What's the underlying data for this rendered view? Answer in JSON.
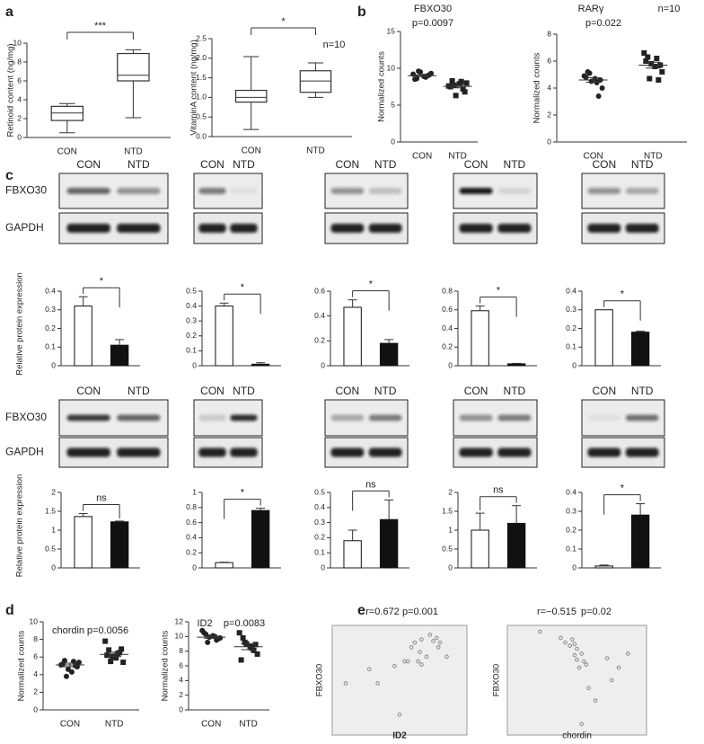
{
  "chart_data": [
    {
      "type": "box",
      "panel": "a",
      "ylabel": "Retinoid content  (ng/mg)",
      "categories": [
        "CON",
        "NTD"
      ],
      "min": [
        0.5,
        2.1
      ],
      "q1": [
        1.8,
        6.0
      ],
      "median": [
        2.6,
        6.6
      ],
      "q3": [
        3.3,
        8.9
      ],
      "max": [
        3.6,
        9.3
      ],
      "ylim": [
        0,
        10
      ],
      "yticks": [
        0,
        2,
        4,
        6,
        8,
        10
      ],
      "annotation": "***"
    },
    {
      "type": "box",
      "ylabel": "VitaminA content  (ng/mg)",
      "categories": [
        "CON",
        "NTD"
      ],
      "min": [
        0.18,
        1.0
      ],
      "q1": [
        0.88,
        1.13
      ],
      "median": [
        1.0,
        1.42
      ],
      "q3": [
        1.18,
        1.68
      ],
      "max": [
        2.04,
        1.88
      ],
      "ylim": [
        0,
        2.5
      ],
      "yticks": [
        {
          "value": 0,
          "label": "0.0"
        },
        0.5,
        {
          "value": 1,
          "label": "1.0"
        },
        1.5,
        {
          "value": 2,
          "label": "2.0"
        },
        2.5
      ],
      "annotation": "*",
      "note": "n=10"
    },
    {
      "type": "dot",
      "panel": "b",
      "title": "FBXO30",
      "subtitle": "p=0.0097",
      "ylabel": "Normalized counts",
      "categories": [
        "CON",
        "NTD"
      ],
      "points": [
        [
          9.2,
          8.6,
          9.5,
          8.9,
          9.0,
          9.3,
          8.5,
          9.1,
          9.6,
          8.8
        ],
        [
          7.6,
          8.3,
          6.3,
          7.9,
          7.2,
          8.0,
          7.5,
          6.8,
          7.7,
          8.2
        ]
      ],
      "mean": [
        9.0,
        7.55
      ],
      "sem": [
        0.12,
        0.2
      ],
      "markers": [
        "circle",
        "square"
      ],
      "ylim": [
        0,
        15
      ],
      "yticks": [
        0,
        5,
        10,
        15
      ]
    },
    {
      "type": "dot",
      "title": "RARγ",
      "subtitle": "p=0.022",
      "note": "n=10",
      "ylabel": "Normalized counts",
      "categories": [
        "CON",
        "NTD"
      ],
      "points": [
        [
          4.9,
          5.2,
          4.5,
          4.7,
          3.4,
          4.0,
          4.8,
          4.6,
          5.1,
          4.4
        ],
        [
          6.6,
          6.3,
          5.8,
          5.6,
          4.6,
          5.2,
          6.0,
          5.7,
          4.7,
          6.2
        ]
      ],
      "mean": [
        4.6,
        5.7
      ],
      "sem": [
        0.17,
        0.22
      ],
      "markers": [
        "circle",
        "square"
      ],
      "ylim": [
        0,
        8
      ],
      "yticks": [
        0,
        2,
        4,
        6,
        8
      ]
    },
    {
      "type": "bar",
      "ylabel": "Relative protein expression",
      "values": [
        0.32,
        0.11
      ],
      "errors": [
        0.05,
        0.03
      ],
      "colors": [
        "#ffffff",
        "#111111"
      ],
      "ylim": [
        0,
        0.4
      ],
      "yticks": [
        0,
        0.1,
        0.2,
        0.3,
        0.4
      ],
      "annotation": "*"
    },
    {
      "type": "bar",
      "values": [
        0.4,
        0.01
      ],
      "errors": [
        0.02,
        0.01
      ],
      "colors": [
        "#ffffff",
        "#111111"
      ],
      "ylim": [
        0,
        0.5
      ],
      "yticks": [
        0,
        0.1,
        0.2,
        0.3,
        0.4,
        0.5
      ],
      "annotation": "*"
    },
    {
      "type": "bar",
      "values": [
        0.47,
        0.18
      ],
      "errors": [
        0.06,
        0.03
      ],
      "colors": [
        "#ffffff",
        "#111111"
      ],
      "ylim": [
        0,
        0.6
      ],
      "yticks": [
        0,
        0.2,
        0.4,
        0.6
      ],
      "annotation": "*"
    },
    {
      "type": "bar",
      "values": [
        0.59,
        0.02
      ],
      "errors": [
        0.05,
        0.005
      ],
      "colors": [
        "#ffffff",
        "#111111"
      ],
      "ylim": [
        0,
        0.8
      ],
      "yticks": [
        0,
        0.2,
        0.4,
        0.6,
        0.8
      ],
      "annotation": "*"
    },
    {
      "type": "bar",
      "values": [
        0.3,
        0.18
      ],
      "errors": [
        null,
        0.005
      ],
      "colors": [
        "#ffffff",
        "#111111"
      ],
      "ylim": [
        0,
        0.4
      ],
      "yticks": [
        0,
        0.1,
        0.2,
        0.3,
        0.4
      ],
      "annotation": "*"
    },
    {
      "type": "bar",
      "ylabel": "Relative protein expression",
      "values": [
        1.36,
        1.22
      ],
      "errors": [
        0.08,
        0.02
      ],
      "colors": [
        "#ffffff",
        "#111111"
      ],
      "ylim": [
        0,
        2
      ],
      "yticks": [
        0,
        0.5,
        1,
        1.5,
        2
      ],
      "annotation": "ns"
    },
    {
      "type": "bar",
      "values": [
        0.07,
        0.76
      ],
      "errors": [
        0.005,
        0.03
      ],
      "colors": [
        "#ffffff",
        "#111111"
      ],
      "ylim": [
        0,
        1
      ],
      "yticks": [
        0,
        0.2,
        0.4,
        0.6,
        0.8,
        1
      ],
      "annotation": "*"
    },
    {
      "type": "bar",
      "values": [
        0.18,
        0.32
      ],
      "errors": [
        0.07,
        0.13
      ],
      "colors": [
        "#ffffff",
        "#111111"
      ],
      "ylim": [
        0,
        0.5
      ],
      "yticks": [
        0,
        0.1,
        0.2,
        0.3,
        0.4,
        0.5
      ],
      "annotation": "ns"
    },
    {
      "type": "bar",
      "values": [
        1.0,
        1.18
      ],
      "errors": [
        0.45,
        0.47
      ],
      "colors": [
        "#ffffff",
        "#111111"
      ],
      "ylim": [
        0,
        2
      ],
      "yticks": [
        0,
        0.5,
        1,
        1.5,
        2
      ],
      "annotation": "ns"
    },
    {
      "type": "bar",
      "values": [
        0.01,
        0.28
      ],
      "errors": [
        0.005,
        0.06
      ],
      "colors": [
        "#ffffff",
        "#111111"
      ],
      "ylim": [
        0,
        0.4
      ],
      "yticks": [
        0,
        0.1,
        0.2,
        0.3,
        0.4
      ],
      "annotation": "*"
    },
    {
      "type": "dot",
      "panel": "d",
      "title": "chordin",
      "subtitle": "p=0.0056",
      "ylabel": "Normalized counts",
      "categories": [
        "CON",
        "NTD"
      ],
      "points": [
        [
          5.1,
          5.6,
          4.6,
          4.3,
          5.0,
          5.4,
          5.2,
          4.9,
          3.8,
          5.5
        ],
        [
          7.8,
          6.8,
          6.1,
          5.9,
          6.5,
          5.4,
          6.2,
          6.9,
          5.5,
          6.4
        ]
      ],
      "mean": [
        5.1,
        6.3
      ],
      "sem": [
        0.2,
        0.25
      ],
      "markers": [
        "circle",
        "square"
      ],
      "ylim": [
        0,
        10
      ],
      "yticks": [
        0,
        2,
        4,
        6,
        8,
        10
      ]
    },
    {
      "type": "dot",
      "title": "ID2",
      "subtitle": "p=0.0083",
      "ylabel": "Normalized counts",
      "categories": [
        "CON",
        "NTD"
      ],
      "points": [
        [
          10.8,
          10.3,
          9.9,
          10.1,
          9.5,
          9.8,
          10.5,
          9.7,
          9.2,
          10.0
        ],
        [
          10.5,
          9.8,
          9.0,
          8.6,
          8.1,
          7.6,
          6.8,
          8.9,
          9.2,
          8.4
        ]
      ],
      "mean": [
        9.9,
        8.6
      ],
      "sem": [
        0.15,
        0.4
      ],
      "markers": [
        "circle",
        "square"
      ],
      "ylim": [
        0,
        12
      ],
      "yticks": [
        0,
        2,
        4,
        6,
        8,
        10,
        12
      ]
    },
    {
      "type": "scatter",
      "panel": "e",
      "title": "r=0.672",
      "subtitle": "p=0.001",
      "xlabel": "ID2",
      "ylabel": "FBXO30",
      "x": [
        5.8,
        7.2,
        7.7,
        8.7,
        9.3,
        9.5,
        9.7,
        9.9,
        10.1,
        10.3,
        10.6,
        10.8,
        11.0,
        11.2,
        11.3,
        11.4,
        10.2,
        9.0,
        11.8,
        10.3
      ],
      "values": [
        7.3,
        8.2,
        7.3,
        8.4,
        8.7,
        8.7,
        9.6,
        9.9,
        8.7,
        8.5,
        9.0,
        10.4,
        10.0,
        10.2,
        9.6,
        9.9,
        9.3,
        5.3,
        9.0,
        10.1
      ],
      "xlim": [
        5,
        13
      ],
      "ylim": [
        4,
        11
      ]
    },
    {
      "type": "scatter",
      "title": "r=−0.515",
      "subtitle": "p=0.02",
      "xlabel": "chordin",
      "ylabel": "FBXO30",
      "x": [
        4.4,
        5.3,
        5.5,
        5.8,
        5.7,
        5.9,
        6.0,
        6.2,
        6.0,
        6.3,
        6.4,
        6.1,
        7.3,
        7.8,
        8.2,
        7.5,
        6.5,
        6.8,
        6.2,
        5.9
      ],
      "values": [
        10.6,
        10.2,
        9.9,
        10.1,
        9.7,
        9.8,
        9.5,
        9.2,
        8.8,
        8.7,
        8.5,
        8.3,
        8.9,
        8.3,
        9.2,
        7.5,
        7.0,
        6.2,
        4.7,
        9.1
      ],
      "xlim": [
        3,
        9
      ],
      "ylim": [
        4,
        11
      ]
    }
  ],
  "blots": {
    "panel": "c",
    "lanes": [
      [
        "CON",
        "NTD"
      ],
      [
        "CON",
        "NTD"
      ],
      [
        "CON",
        "NTD"
      ],
      [
        "CON",
        "NTD"
      ],
      [
        "CON",
        "NTD"
      ],
      [
        "CON",
        "NTD"
      ],
      [
        "CON",
        "NTD"
      ],
      [
        "CON",
        "NTD"
      ],
      [
        "CON",
        "NTD"
      ],
      [
        "CON",
        "NTD"
      ]
    ],
    "proteins": [
      [
        "FBXO30",
        "GAPDH"
      ],
      [
        "FBXO30",
        "GAPDH"
      ]
    ]
  }
}
